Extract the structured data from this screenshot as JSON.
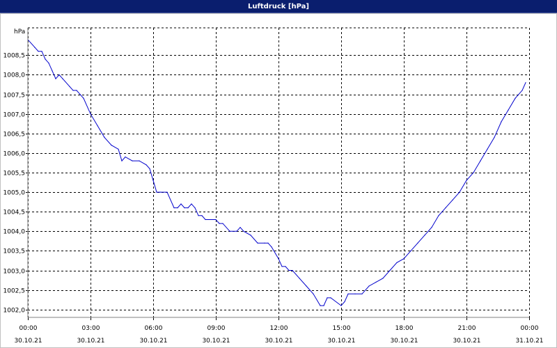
{
  "window": {
    "title": "Luftdruck [hPa]"
  },
  "chart_data": {
    "type": "line",
    "title": "Luftdruck [hPa]",
    "ylabel": "hPa",
    "ylim": [
      1001.8,
      1009.2
    ],
    "grid": true,
    "yticks": [
      1002.0,
      1002.5,
      1003.0,
      1003.5,
      1004.0,
      1004.5,
      1005.0,
      1005.5,
      1006.0,
      1006.5,
      1007.0,
      1007.5,
      1008.0,
      1008.5
    ],
    "ytick_labels": [
      "1002,0",
      "1002,5",
      "1003,0",
      "1003,5",
      "1004,0",
      "1004,5",
      "1005,0",
      "1005,5",
      "1006,0",
      "1006,5",
      "1007,0",
      "1007,5",
      "1008,0",
      "1008,5"
    ],
    "xticks": [
      {
        "time": "00:00",
        "date": "30.10.21"
      },
      {
        "time": "03:00",
        "date": "30.10.21"
      },
      {
        "time": "06:00",
        "date": "30.10.21"
      },
      {
        "time": "09:00",
        "date": "30.10.21"
      },
      {
        "time": "12:00",
        "date": "30.10.21"
      },
      {
        "time": "15:00",
        "date": "30.10.21"
      },
      {
        "time": "18:00",
        "date": "30.10.21"
      },
      {
        "time": "21:00",
        "date": "30.10.21"
      },
      {
        "time": "00:00",
        "date": "31.10.21"
      }
    ],
    "series": [
      {
        "color": "#0000cc",
        "x": [
          "30.10.21 00:00",
          "30.10.21 00:20",
          "30.10.21 00:30",
          "30.10.21 00:40",
          "30.10.21 00:50",
          "30.10.21 01:00",
          "30.10.21 01:10",
          "30.10.21 01:20",
          "30.10.21 01:30",
          "30.10.21 01:40",
          "30.10.21 02:00",
          "30.10.21 02:10",
          "30.10.21 02:20",
          "30.10.21 02:30",
          "30.10.21 02:40",
          "30.10.21 03:00",
          "30.10.21 03:20",
          "30.10.21 03:40",
          "30.10.21 04:00",
          "30.10.21 04:20",
          "30.10.21 04:30",
          "30.10.21 04:40",
          "30.10.21 05:00",
          "30.10.21 05:20",
          "30.10.21 05:40",
          "30.10.21 05:50",
          "30.10.21 06:00",
          "30.10.21 06:10",
          "30.10.21 06:20",
          "30.10.21 06:40",
          "30.10.21 07:00",
          "30.10.21 07:10",
          "30.10.21 07:20",
          "30.10.21 07:30",
          "30.10.21 07:40",
          "30.10.21 07:50",
          "30.10.21 08:00",
          "30.10.21 08:10",
          "30.10.21 08:20",
          "30.10.21 08:30",
          "30.10.21 09:00",
          "30.10.21 09:10",
          "30.10.21 09:20",
          "30.10.21 09:40",
          "30.10.21 10:00",
          "30.10.21 10:10",
          "30.10.21 10:20",
          "30.10.21 10:40",
          "30.10.21 11:00",
          "30.10.21 11:20",
          "30.10.21 11:30",
          "30.10.21 11:40",
          "30.10.21 12:00",
          "30.10.21 12:10",
          "30.10.21 12:20",
          "30.10.21 12:30",
          "30.10.21 12:40",
          "30.10.21 13:00",
          "30.10.21 13:20",
          "30.10.21 13:40",
          "30.10.21 14:00",
          "30.10.21 14:10",
          "30.10.21 14:20",
          "30.10.21 14:30",
          "30.10.21 15:00",
          "30.10.21 15:10",
          "30.10.21 15:20",
          "30.10.21 15:40",
          "30.10.21 16:00",
          "30.10.21 16:20",
          "30.10.21 16:40",
          "30.10.21 17:00",
          "30.10.21 17:20",
          "30.10.21 17:40",
          "30.10.21 18:00",
          "30.10.21 18:20",
          "30.10.21 18:40",
          "30.10.21 19:00",
          "30.10.21 19:20",
          "30.10.21 19:40",
          "30.10.21 20:00",
          "30.10.21 20:20",
          "30.10.21 20:40",
          "30.10.21 21:00",
          "30.10.21 21:20",
          "30.10.21 21:40",
          "30.10.21 22:00",
          "30.10.21 22:20",
          "30.10.21 22:40",
          "30.10.21 23:00",
          "30.10.21 23:20",
          "30.10.21 23:40",
          "30.10.21 23:50"
        ],
        "y": [
          1008.9,
          1008.7,
          1008.6,
          1008.6,
          1008.4,
          1008.3,
          1008.1,
          1007.9,
          1008.0,
          1007.9,
          1007.7,
          1007.6,
          1007.6,
          1007.5,
          1007.4,
          1007.0,
          1006.7,
          1006.4,
          1006.2,
          1006.1,
          1005.8,
          1005.9,
          1005.8,
          1005.8,
          1005.7,
          1005.6,
          1005.3,
          1005.0,
          1005.0,
          1005.0,
          1004.6,
          1004.6,
          1004.7,
          1004.6,
          1004.6,
          1004.7,
          1004.6,
          1004.4,
          1004.4,
          1004.3,
          1004.3,
          1004.2,
          1004.2,
          1004.0,
          1004.0,
          1004.1,
          1004.0,
          1003.9,
          1003.7,
          1003.7,
          1003.7,
          1003.6,
          1003.3,
          1003.1,
          1003.1,
          1003.0,
          1003.0,
          1002.8,
          1002.6,
          1002.4,
          1002.1,
          1002.1,
          1002.3,
          1002.3,
          1002.1,
          1002.2,
          1002.4,
          1002.4,
          1002.4,
          1002.6,
          1002.7,
          1002.8,
          1003.0,
          1003.2,
          1003.3,
          1003.5,
          1003.7,
          1003.9,
          1004.1,
          1004.4,
          1004.6,
          1004.8,
          1005.0,
          1005.3,
          1005.5,
          1005.8,
          1006.1,
          1006.4,
          1006.8,
          1007.1,
          1007.4,
          1007.6,
          1007.8
        ]
      }
    ]
  }
}
